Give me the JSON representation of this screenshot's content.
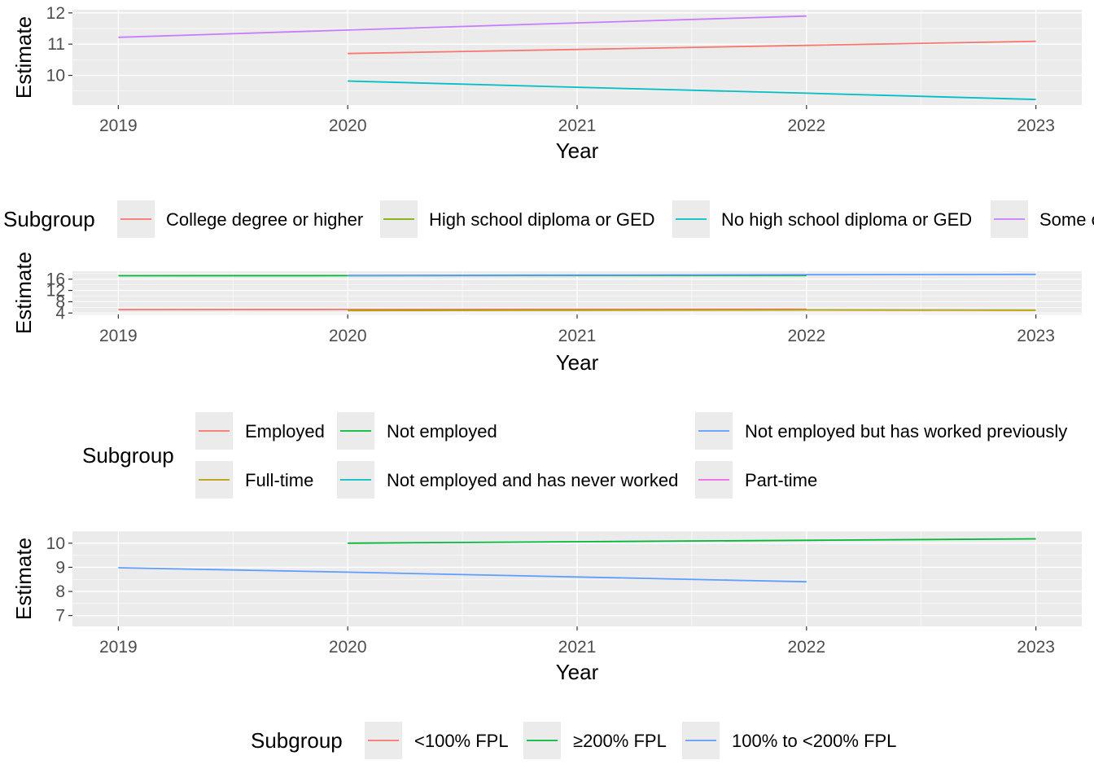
{
  "chart_data": [
    {
      "type": "line",
      "xlabel": "Year",
      "ylabel": "Estimate",
      "xlim": [
        2018.8,
        2023.2
      ],
      "ylim": [
        9.05,
        12.1
      ],
      "x_ticks": [
        2019,
        2020,
        2021,
        2022,
        2023
      ],
      "y_ticks": [
        10,
        11,
        12
      ],
      "grid": true,
      "legend": {
        "title": "Subgroup",
        "placement": "bottom",
        "entries": [
          {
            "label": "College degree or higher",
            "color": "#F8766D"
          },
          {
            "label": "High school diploma or GED",
            "color": "#7CAE00"
          },
          {
            "label": "No high school diploma or GED",
            "color": "#00BFC4"
          },
          {
            "label": "Some college",
            "color": "#C77CFF"
          }
        ]
      },
      "series": [
        {
          "name": "College degree or higher",
          "color": "#F8766D",
          "x": [
            2020,
            2021,
            2022,
            2023
          ],
          "y": [
            10.7,
            10.83,
            10.96,
            11.09
          ]
        },
        {
          "name": "No high school diploma or GED",
          "color": "#00BFC4",
          "x": [
            2020,
            2021,
            2022,
            2023
          ],
          "y": [
            9.82,
            9.62,
            9.43,
            9.23
          ]
        },
        {
          "name": "Some college",
          "color": "#C77CFF",
          "x": [
            2019,
            2020,
            2021,
            2022
          ],
          "y": [
            11.22,
            11.45,
            11.68,
            11.9
          ]
        }
      ]
    },
    {
      "type": "line",
      "xlabel": "Year",
      "ylabel": "Estimate",
      "xlim": [
        2018.8,
        2023.2
      ],
      "ylim": [
        3.5,
        18.8
      ],
      "x_ticks": [
        2019,
        2020,
        2021,
        2022,
        2023
      ],
      "y_ticks": [
        4,
        8,
        12,
        16
      ],
      "grid": true,
      "legend": {
        "title": "Subgroup",
        "placement": "bottom",
        "entries": [
          {
            "label": "Employed",
            "color": "#F8766D"
          },
          {
            "label": "Not employed",
            "color": "#00BA38"
          },
          {
            "label": "Not employed but has worked previously",
            "color": "#619CFF"
          },
          {
            "label": "Full-time",
            "color": "#B79F00"
          },
          {
            "label": "Not employed and has never worked",
            "color": "#00BFC4"
          },
          {
            "label": "Part-time",
            "color": "#F564E3"
          }
        ]
      },
      "series": [
        {
          "name": "Employed",
          "color": "#F8766D",
          "x": [
            2019,
            2020,
            2021,
            2022
          ],
          "y": [
            5.2,
            5.25,
            5.3,
            5.35
          ]
        },
        {
          "name": "Full-time",
          "color": "#B79F00",
          "x": [
            2020,
            2021,
            2022,
            2023
          ],
          "y": [
            4.9,
            5.0,
            5.1,
            5.0
          ]
        },
        {
          "name": "Not employed",
          "color": "#00BA38",
          "x": [
            2019,
            2020,
            2021,
            2022
          ],
          "y": [
            17.2,
            17.25,
            17.3,
            17.3
          ]
        },
        {
          "name": "Not employed but has worked previously",
          "color": "#619CFF",
          "x": [
            2020,
            2021,
            2022,
            2023
          ],
          "y": [
            17.3,
            17.45,
            17.6,
            17.7
          ]
        }
      ]
    },
    {
      "type": "line",
      "xlabel": "Year",
      "ylabel": "Estimate",
      "xlim": [
        2018.8,
        2023.2
      ],
      "ylim": [
        6.55,
        10.5
      ],
      "x_ticks": [
        2019,
        2020,
        2021,
        2022,
        2023
      ],
      "y_ticks": [
        7,
        8,
        9,
        10
      ],
      "grid": true,
      "legend": {
        "title": "Subgroup",
        "placement": "bottom",
        "entries": [
          {
            "label": "<100% FPL",
            "color": "#F8766D"
          },
          {
            "label": "≥200% FPL",
            "color": "#00BA38"
          },
          {
            "label": "100% to <200% FPL",
            "color": "#619CFF"
          }
        ]
      },
      "series": [
        {
          "name": "≥200% FPL",
          "color": "#00BA38",
          "x": [
            2020,
            2021,
            2022,
            2023
          ],
          "y": [
            10.0,
            10.06,
            10.12,
            10.18
          ]
        },
        {
          "name": "100% to <200% FPL",
          "color": "#619CFF",
          "x": [
            2019,
            2020,
            2021,
            2022
          ],
          "y": [
            8.98,
            8.8,
            8.6,
            8.4
          ]
        }
      ]
    }
  ]
}
